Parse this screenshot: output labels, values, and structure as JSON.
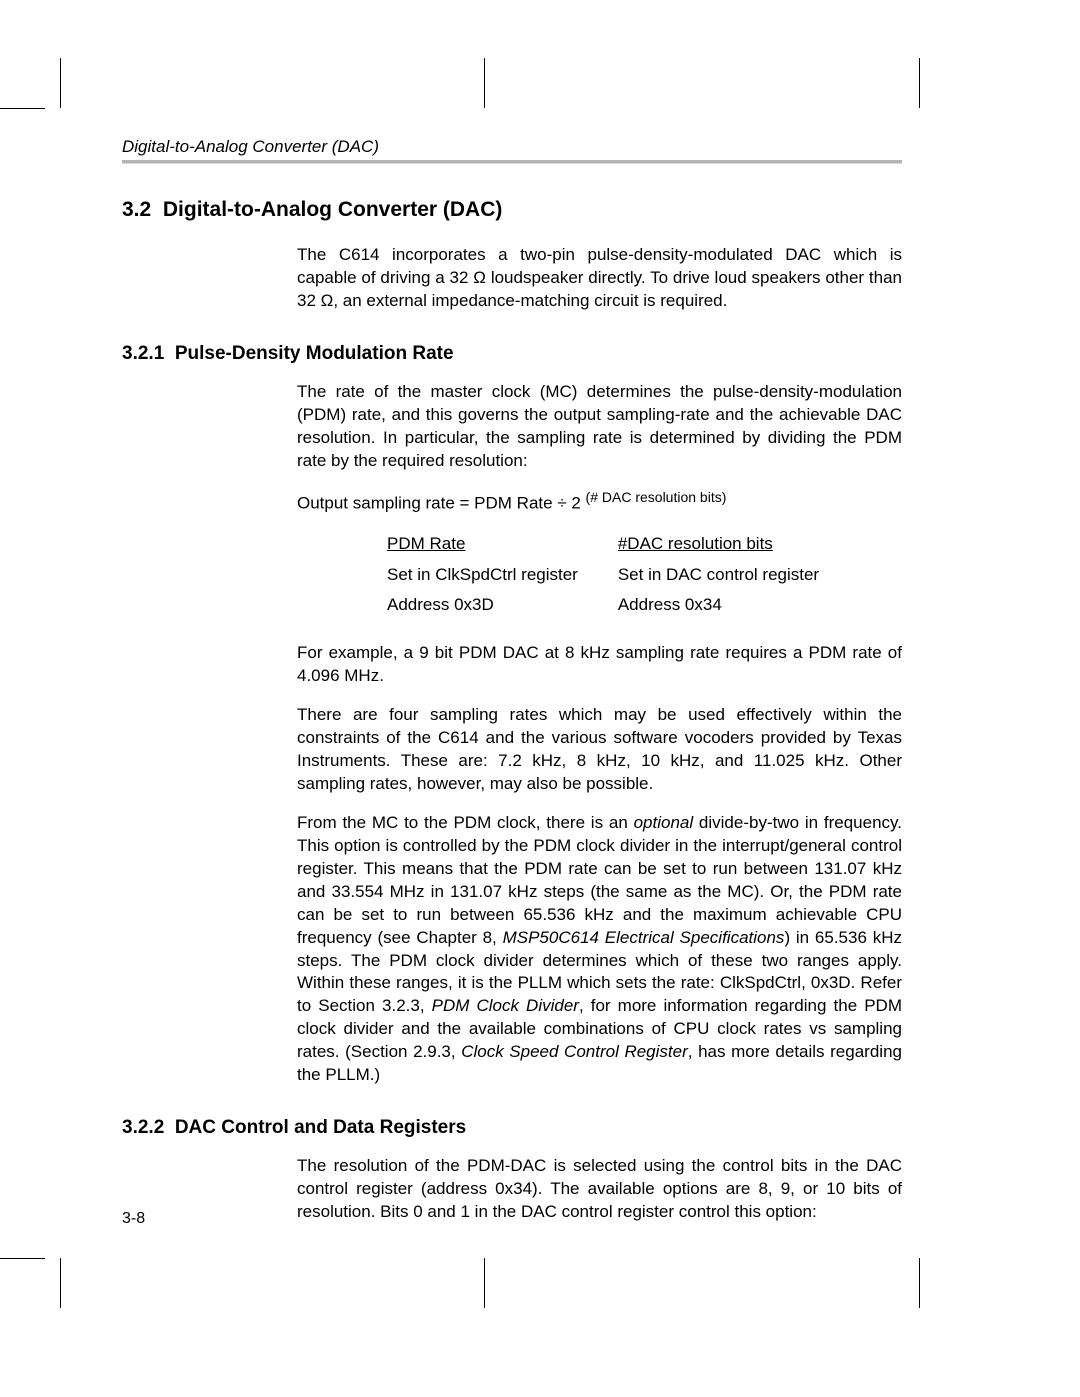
{
  "running_head": "Digital-to-Analog Converter (DAC)",
  "section": {
    "number": "3.2",
    "title": "Digital-to-Analog Converter (DAC)",
    "intro": "The C614 incorporates a two-pin pulse-density-modulated DAC which is capable of driving a 32 Ω loudspeaker directly. To drive loud speakers other than 32 Ω, an external impedance-matching circuit is required."
  },
  "sub1": {
    "number": "3.2.1",
    "title": "Pulse-Density Modulation Rate",
    "p1": "The rate of the master clock (MC) determines the pulse-density-modulation (PDM) rate, and this governs the output sampling-rate and the achievable DAC resolution. In particular, the sampling rate is determined by dividing the PDM rate by the required resolution:",
    "formula_lhs": "Output sampling rate = PDM Rate ÷ 2 ",
    "formula_sup": "(# DAC resolution bits)",
    "table": {
      "col1": [
        "PDM Rate",
        "Set in ClkSpdCtrl register",
        "Address 0x3D"
      ],
      "col2": [
        "#DAC resolution bits",
        "Set in DAC control register",
        "Address 0x34"
      ]
    },
    "p2": "For example, a 9 bit PDM DAC at 8 kHz sampling rate requires a PDM rate of 4.096 MHz.",
    "p3": "There are four sampling rates which may be used effectively within the constraints of the C614 and the various software vocoders provided by Texas Instruments. These are: 7.2 kHz, 8 kHz, 10 kHz, and 11.025 kHz. Other sampling rates, however, may also be possible.",
    "p4_a": "From the MC to the PDM clock, there is an ",
    "p4_optional": "optional",
    "p4_b": " divide-by-two in frequency. This option is controlled by the PDM clock divider in the interrupt/general control register. This means that the PDM rate can be set to run between 131.07 kHz and 33.554 MHz in 131.07 kHz steps (the same as the MC). Or, the PDM rate can be set to run between 65.536 kHz and the maximum achievable CPU frequency (see Chapter 8, ",
    "p4_ref1": "MSP50C614 Electrical Specifications",
    "p4_c": ") in 65.536 kHz steps. The PDM clock divider determines which of these two ranges apply. Within these ranges, it is the PLLM which sets the rate: ClkSpdCtrl, 0x3D. Refer to Section 3.2.3, ",
    "p4_ref2": "PDM Clock Divider",
    "p4_d": ", for more information regarding the PDM clock divider and the available combinations of CPU clock rates vs sampling rates. (Section 2.9.3, ",
    "p4_ref3": "Clock Speed Control Register",
    "p4_e": ", has more details regarding the PLLM.)"
  },
  "sub2": {
    "number": "3.2.2",
    "title": "DAC Control and Data Registers",
    "p1": "The resolution of the PDM-DAC is selected using the control bits in the DAC control register (address 0x34). The available options are 8, 9, or 10 bits of resolution. Bits 0 and 1 in the DAC control register control this option:"
  },
  "page_number": "3-8"
}
